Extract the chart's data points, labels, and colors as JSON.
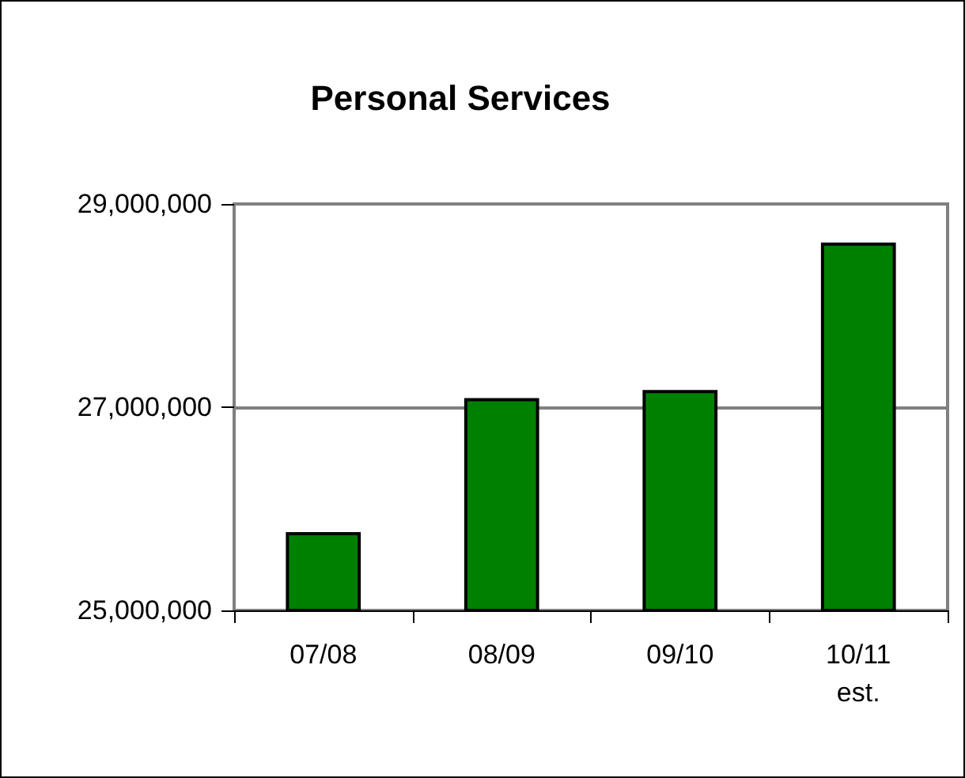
{
  "chart_data": {
    "type": "bar",
    "title": "Personal Services",
    "categories": [
      "07/08",
      "08/09",
      "09/10",
      "10/11\nest."
    ],
    "values": [
      25770000,
      27090000,
      27170000,
      28620000
    ],
    "color": "#008000",
    "ylim": [
      25000000,
      29000000
    ],
    "yticks": [
      {
        "value": 25000000,
        "label": "25,000,000"
      },
      {
        "value": 27000000,
        "label": "27,000,000"
      },
      {
        "value": 29000000,
        "label": "29,000,000"
      }
    ],
    "grid": "y"
  }
}
